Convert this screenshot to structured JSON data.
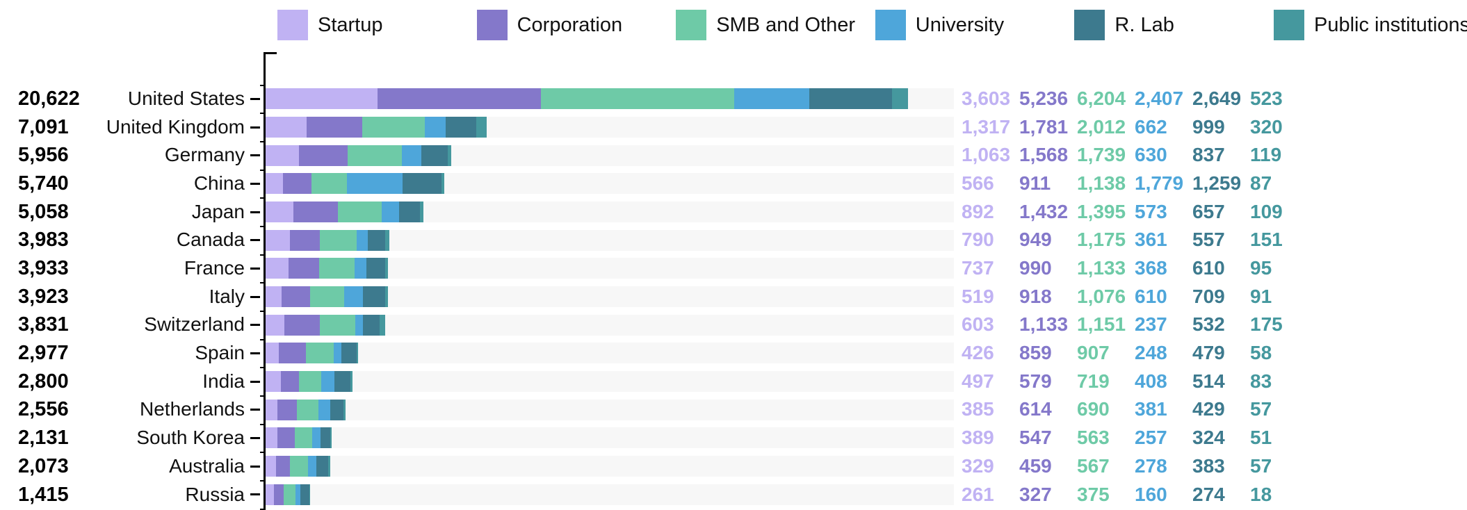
{
  "chart_data": {
    "type": "bar",
    "orientation": "horizontal",
    "stacked": true,
    "title": "",
    "xlabel": "",
    "ylabel": "",
    "xlim": [
      0,
      22090
    ],
    "grid": false,
    "legend_position": "top",
    "categories": [
      "United States",
      "United Kingdom",
      "Germany",
      "China",
      "Japan",
      "Canada",
      "France",
      "Italy",
      "Switzerland",
      "Spain",
      "India",
      "Netherlands",
      "South Korea",
      "Australia",
      "Russia"
    ],
    "totals": [
      20622,
      7091,
      5956,
      5740,
      5058,
      3983,
      3933,
      3923,
      3831,
      2977,
      2800,
      2556,
      2131,
      2073,
      1415
    ],
    "series": [
      {
        "name": "Startup",
        "color": "#c0b2f3",
        "values": [
          3603,
          1317,
          1063,
          566,
          892,
          790,
          737,
          519,
          603,
          426,
          497,
          385,
          389,
          329,
          261
        ]
      },
      {
        "name": "Corporation",
        "color": "#8478ca",
        "values": [
          5236,
          1781,
          1568,
          911,
          1432,
          949,
          990,
          918,
          1133,
          859,
          579,
          614,
          547,
          459,
          327
        ]
      },
      {
        "name": "SMB and Other",
        "color": "#6ecaa7",
        "values": [
          6204,
          2012,
          1739,
          1138,
          1395,
          1175,
          1133,
          1076,
          1151,
          907,
          719,
          690,
          563,
          567,
          375
        ]
      },
      {
        "name": "University",
        "color": "#4ea6da",
        "values": [
          2407,
          662,
          630,
          1779,
          573,
          361,
          368,
          610,
          237,
          248,
          408,
          381,
          257,
          278,
          160
        ]
      },
      {
        "name": "R. Lab",
        "color": "#3d7a8e",
        "values": [
          2649,
          999,
          837,
          1259,
          657,
          557,
          610,
          709,
          532,
          479,
          514,
          429,
          324,
          383,
          274
        ]
      },
      {
        "name": "Public institutions",
        "color": "#45989e",
        "values": [
          523,
          320,
          119,
          87,
          109,
          151,
          95,
          91,
          175,
          58,
          83,
          57,
          51,
          57,
          18
        ]
      }
    ]
  },
  "colors": {
    "track": "#f7f7f7",
    "axis": "#000000",
    "text": "#111111",
    "background": "#ffffff"
  }
}
